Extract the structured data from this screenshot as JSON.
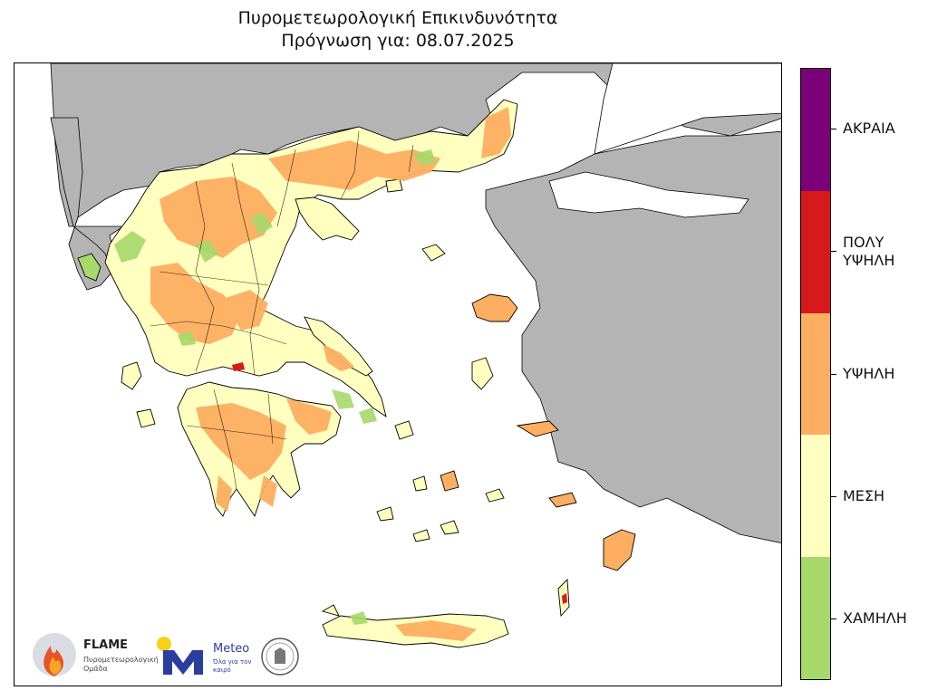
{
  "title": {
    "line1": "Πυρομετεωρολογική Επικινδυνότητα",
    "line2": "Πρόγνωση για: 08.07.2025"
  },
  "legend": {
    "levels": [
      {
        "label": "ΑΚΡΑΙΑ",
        "color": "#7a0177"
      },
      {
        "label": "ΠΟΛΥ\nΥΨΗΛΗ",
        "color": "#d7191c"
      },
      {
        "label": "ΥΨΗΛΗ",
        "color": "#fdae61"
      },
      {
        "label": "ΜΕΣΗ",
        "color": "#ffffbf"
      },
      {
        "label": "ΧΑΜΗΛΗ",
        "color": "#a6d96a"
      }
    ]
  },
  "map_colors": {
    "sea": "#ffffff",
    "neighbor_land": "#b4b4b4",
    "border": "#000000"
  },
  "logos": {
    "flame_name": "FLAME",
    "flame_sub": "Πυρομετεωρολογική Ομάδα",
    "meteo_name": "Meteo",
    "meteo_sub": "Όλα για τον καιρό"
  }
}
